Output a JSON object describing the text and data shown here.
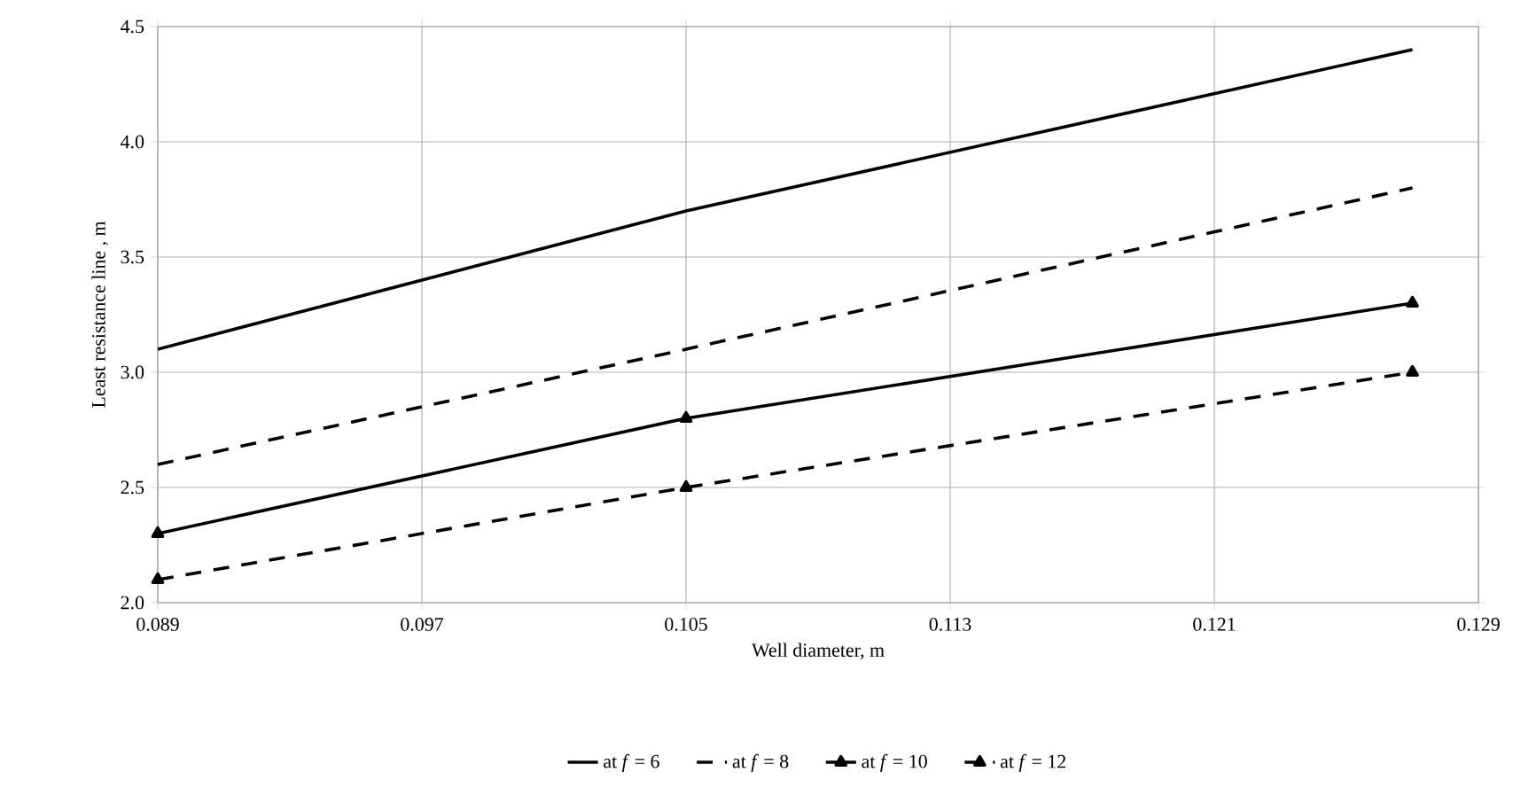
{
  "chart_data": {
    "type": "line",
    "xlabel": "Well diameter, m",
    "ylabel": "Least resistance line , m",
    "xlim": [
      0.089,
      0.129
    ],
    "xticks": [
      0.089,
      0.097,
      0.105,
      0.113,
      0.121,
      0.129
    ],
    "ylim": [
      2.0,
      4.5
    ],
    "yticks": [
      {
        "value": 2.0,
        "label": "2.0"
      },
      {
        "value": 2.5,
        "label": "2.5"
      },
      {
        "value": 3.0,
        "label": "3.0"
      },
      {
        "value": 3.5,
        "label": "3.5"
      },
      {
        "value": 4.0,
        "label": "4.0"
      },
      {
        "value": 4.5,
        "label": "4.5"
      }
    ],
    "grid": true,
    "legend": "bottom",
    "series": [
      {
        "name": "at *f* = 6",
        "color": "#000000",
        "line_style": "solid",
        "marker": "none",
        "x": [
          0.089,
          0.105,
          0.127
        ],
        "values": [
          3.1,
          3.7,
          4.4
        ]
      },
      {
        "name": "at *f* = 8",
        "color": "#000000",
        "line_style": "dashed",
        "marker": "none",
        "x": [
          0.089,
          0.105,
          0.127
        ],
        "values": [
          2.6,
          3.1,
          3.8
        ]
      },
      {
        "name": "at *f* = 10",
        "color": "#000000",
        "line_style": "solid",
        "marker": "triangle",
        "x": [
          0.089,
          0.105,
          0.127
        ],
        "values": [
          2.3,
          2.8,
          3.3
        ]
      },
      {
        "name": "at *f* = 12",
        "color": "#000000",
        "line_style": "dashed",
        "marker": "triangle",
        "x": [
          0.089,
          0.105,
          0.127
        ],
        "values": [
          2.1,
          2.5,
          3.0
        ]
      }
    ]
  }
}
